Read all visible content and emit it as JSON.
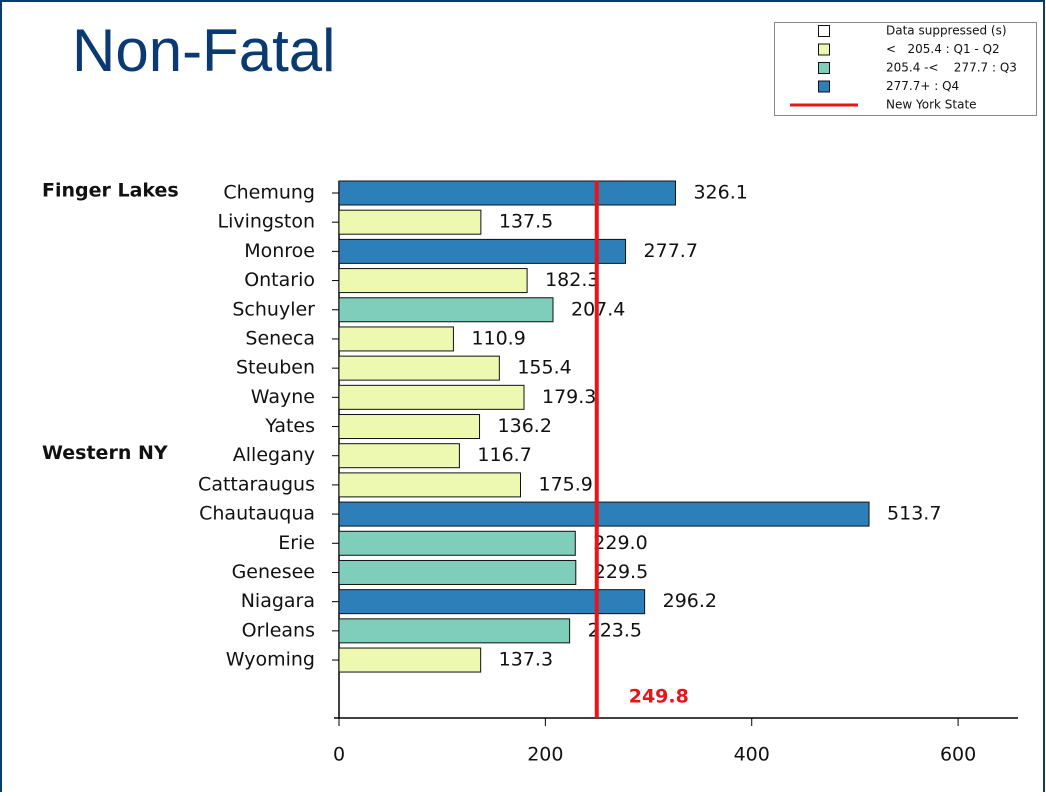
{
  "title": "Non-Fatal",
  "chart_data": {
    "type": "bar",
    "orientation": "horizontal",
    "categories": [
      "Chemung",
      "Livingston",
      "Monroe",
      "Ontario",
      "Schuyler",
      "Seneca",
      "Steuben",
      "Wayne",
      "Yates",
      "Allegany",
      "Cattaraugus",
      "Chautauqua",
      "Erie",
      "Genesee",
      "Niagara",
      "Orleans",
      "Wyoming"
    ],
    "values": [
      326.1,
      137.5,
      277.7,
      182.3,
      207.4,
      110.9,
      155.4,
      179.3,
      136.2,
      116.7,
      175.9,
      513.7,
      229.0,
      229.5,
      296.2,
      223.5,
      137.3
    ],
    "value_labels": [
      "326.1",
      "137.5",
      "277.7",
      "182.3",
      "207.4",
      "110.9",
      "155.4",
      "179.3",
      "136.2",
      "116.7",
      "175.9",
      "513.7",
      "229.0",
      "229.5",
      "296.2",
      "223.5",
      "137.3"
    ],
    "colors": [
      "#2c7fb8",
      "#edf8b1",
      "#2c7fb8",
      "#edf8b1",
      "#7fcdbb",
      "#edf8b1",
      "#edf8b1",
      "#edf8b1",
      "#edf8b1",
      "#edf8b1",
      "#edf8b1",
      "#2c7fb8",
      "#7fcdbb",
      "#7fcdbb",
      "#2c7fb8",
      "#7fcdbb",
      "#edf8b1"
    ],
    "groups": [
      {
        "name": "Finger Lakes",
        "first": "Chemung"
      },
      {
        "name": "Western NY",
        "first": "Allegany"
      }
    ],
    "xlim": [
      0,
      660
    ],
    "xticks": [
      0,
      200,
      400,
      600
    ],
    "reference_line": {
      "name": "New York State",
      "value": 249.8,
      "color": "#e8141c"
    },
    "legend": [
      {
        "label": "Data suppressed (s)",
        "color": "#ffffff"
      },
      {
        "label": "<   205.4 : Q1 - Q2",
        "color": "#edf8b1"
      },
      {
        "label": "205.4 -<    277.7 : Q3",
        "color": "#7fcdbb"
      },
      {
        "label": "277.7+ : Q4",
        "color": "#2c7fb8"
      }
    ]
  }
}
